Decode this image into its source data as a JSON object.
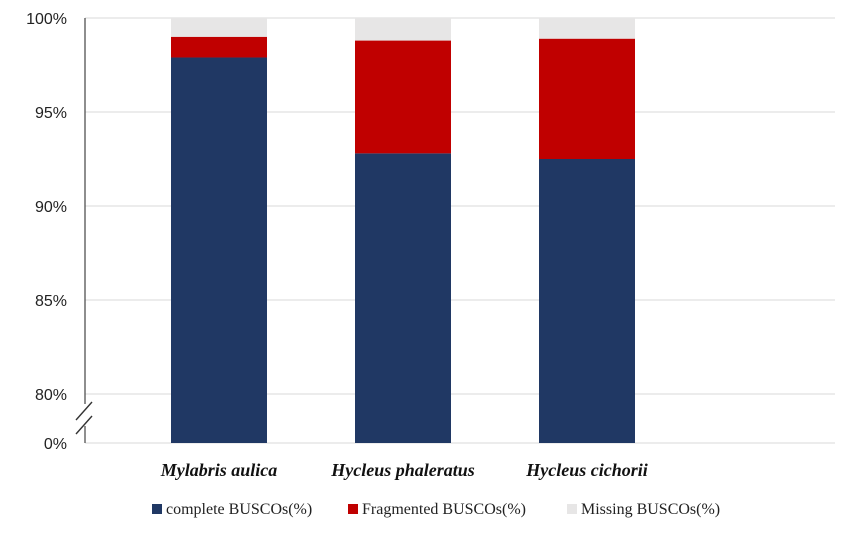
{
  "chart_data": {
    "type": "bar",
    "stacked": true,
    "categories": [
      "Mylabris aulica",
      "Hycleus phaleratus",
      "Hycleus cichorii"
    ],
    "series": [
      {
        "name": "complete BUSCOs(%)",
        "values": [
          97.9,
          92.8,
          92.5
        ],
        "color": "#203864"
      },
      {
        "name": "Fragmented BUSCOs(%)",
        "values": [
          1.1,
          6.0,
          6.4
        ],
        "color": "#c00000"
      },
      {
        "name": "Missing BUSCOs(%)",
        "values": [
          1.0,
          1.2,
          1.1
        ],
        "color": "#e7e6e6"
      }
    ],
    "yticks": [
      "0%",
      "80%",
      "85%",
      "90%",
      "95%",
      "100%"
    ],
    "ylim": [
      80,
      100
    ],
    "axis_break": true,
    "grid": true,
    "legend_position": "bottom"
  }
}
